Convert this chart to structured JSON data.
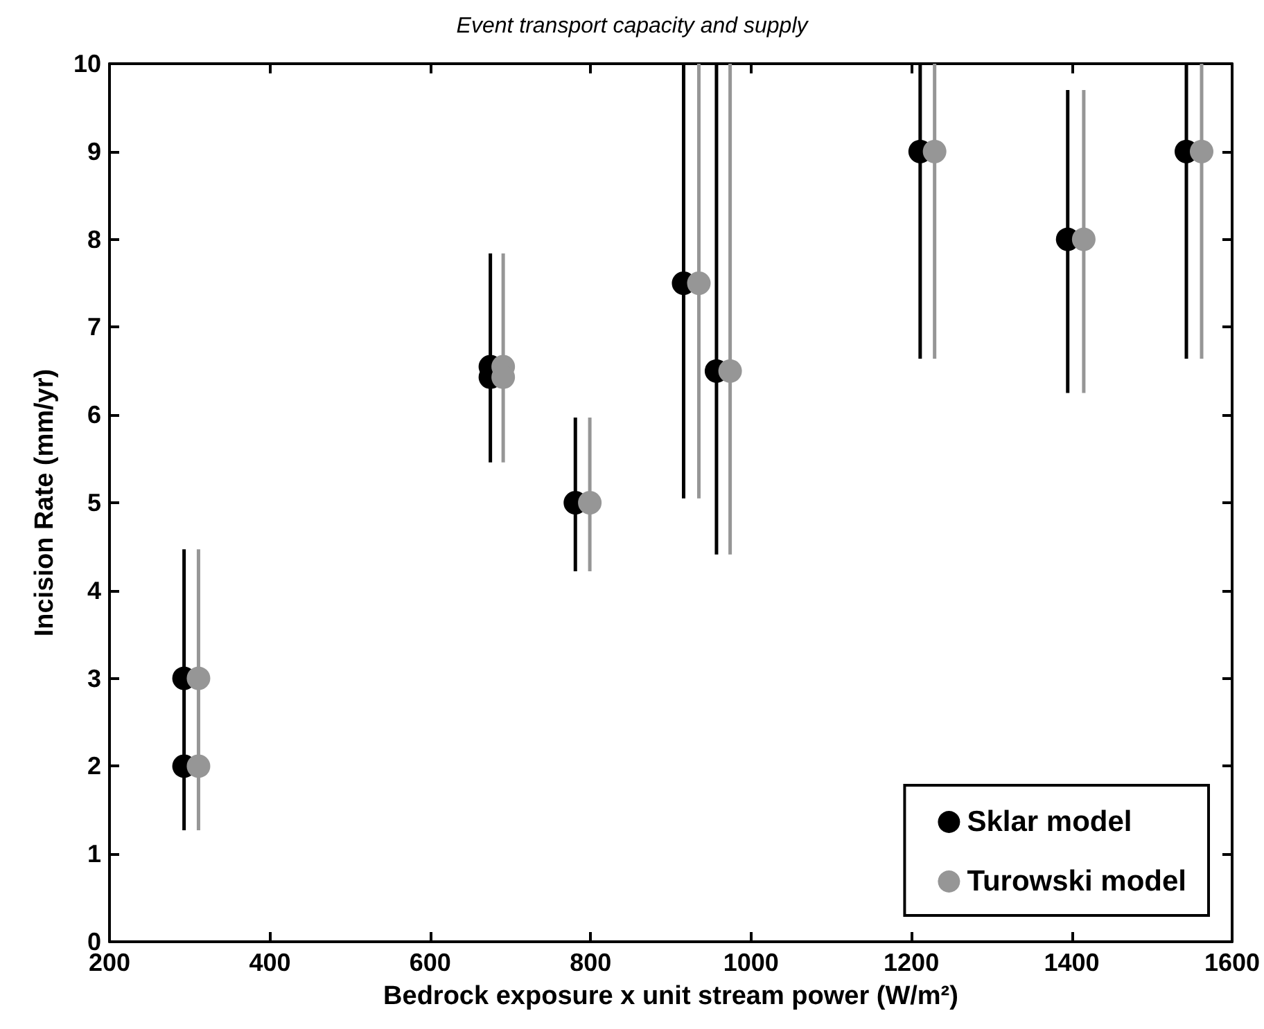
{
  "chart_data": {
    "type": "scatter",
    "title": "Event transport capacity and supply",
    "xlabel": "Bedrock exposure x unit stream power (W/m²)",
    "ylabel": "Incision Rate (mm/yr)",
    "xlim": [
      200,
      1600
    ],
    "xticks": [
      200,
      400,
      600,
      800,
      1000,
      1200,
      1400,
      1600
    ],
    "ylim": [
      0,
      10
    ],
    "yticks": [
      0,
      1,
      2,
      3,
      4,
      5,
      6,
      7,
      8,
      9,
      10
    ],
    "grid": false,
    "legend": "bottom right",
    "marker": "circle",
    "series": [
      {
        "name": "Sklar model",
        "color": "#000000",
        "x": [
          293,
          293,
          675,
          675,
          781,
          916,
          957,
          1211,
          1395,
          1543
        ],
        "values": [
          3,
          2,
          6.55,
          6.43,
          5,
          7.5,
          6.5,
          9,
          8,
          9
        ],
        "errors": [
          [
            1.27,
            4.47
          ],
          null,
          [
            5.46,
            7.84
          ],
          null,
          [
            4.22,
            5.97
          ],
          [
            5.05,
            10
          ],
          [
            4.41,
            10
          ],
          [
            6.64,
            10
          ],
          [
            6.25,
            9.7
          ],
          [
            6.64,
            10
          ]
        ]
      },
      {
        "name": "Turowski model",
        "color": "#969696",
        "x": [
          311,
          311,
          691,
          691,
          799,
          935,
          974,
          1229,
          1415,
          1562
        ],
        "values": [
          3,
          2,
          6.55,
          6.43,
          5,
          7.5,
          6.5,
          9,
          8,
          9
        ],
        "errors": [
          [
            1.27,
            4.47
          ],
          null,
          [
            5.46,
            7.84
          ],
          null,
          [
            4.22,
            5.97
          ],
          [
            5.05,
            10
          ],
          [
            4.41,
            10
          ],
          [
            6.64,
            10
          ],
          [
            6.25,
            9.7
          ],
          [
            6.64,
            10
          ]
        ]
      }
    ]
  }
}
